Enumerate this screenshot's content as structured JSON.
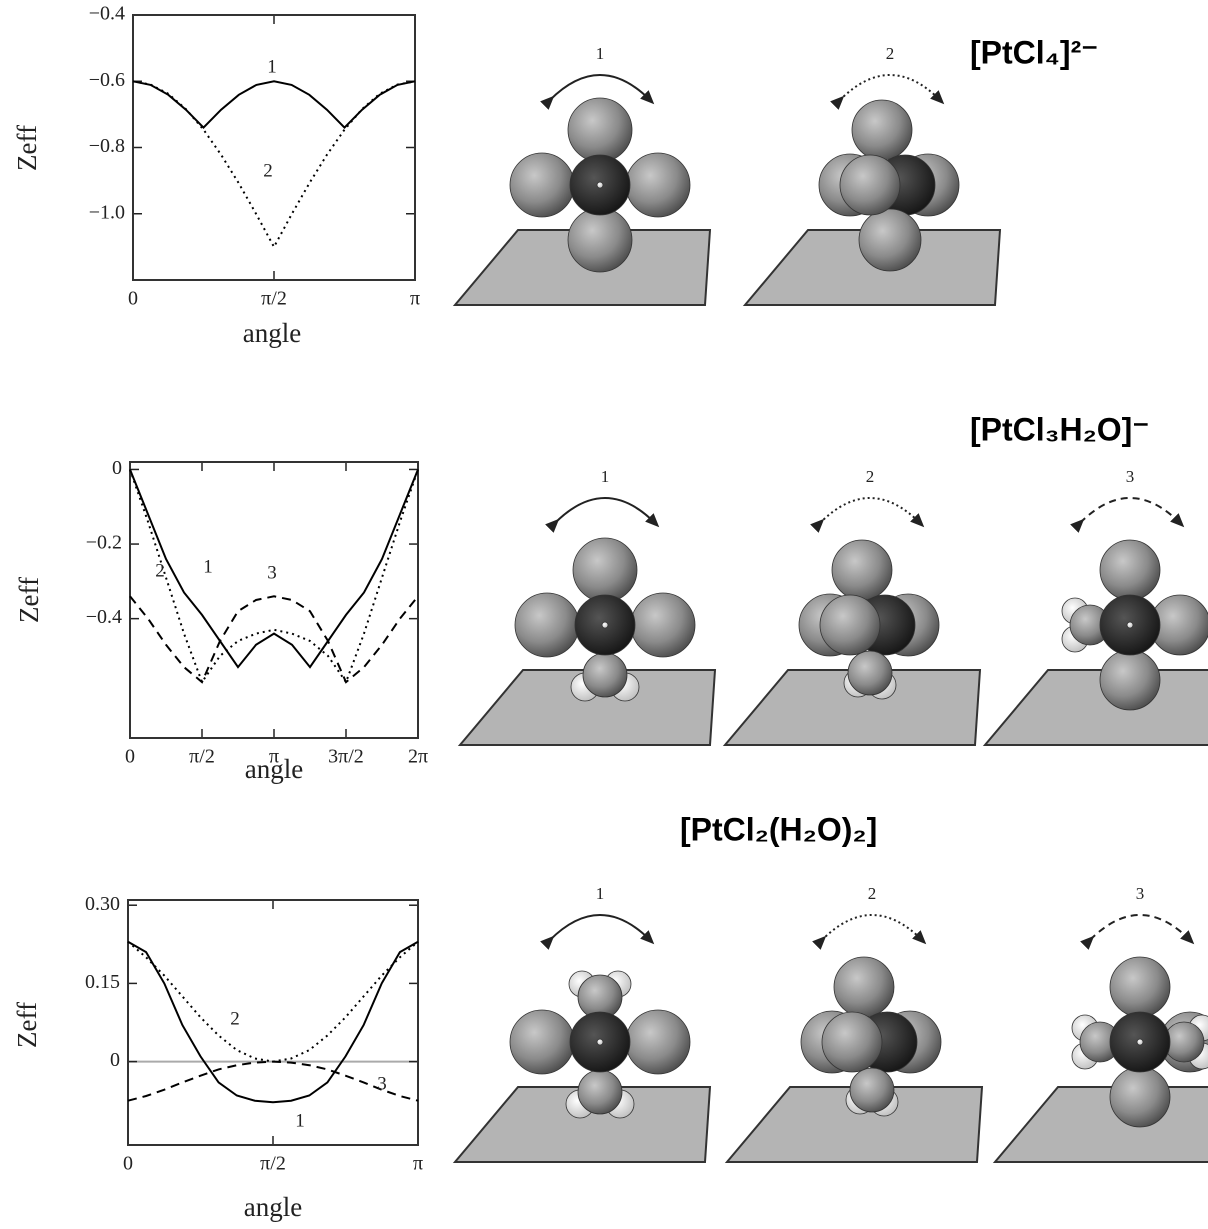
{
  "chart_data": [
    {
      "type": "line",
      "xlabel": "angle",
      "ylabel": "Zeff",
      "x": [
        0,
        0.19635,
        0.3927,
        0.58905,
        0.7854,
        0.98175,
        1.1781,
        1.37445,
        1.5708,
        1.76715,
        1.9635,
        2.15985,
        2.35619,
        2.55254,
        2.74889,
        2.94524,
        3.14159
      ],
      "xlim": [
        0,
        3.14159
      ],
      "xticks": [
        0,
        {
          "value": 1.5708,
          "label": "π/2"
        },
        {
          "value": 3.14159,
          "label": "π"
        }
      ],
      "ylim": [
        -1.2,
        -0.4
      ],
      "yticks": [
        {
          "value": -0.4,
          "label": "−0.4"
        },
        {
          "value": -0.6,
          "label": "−0.6"
        },
        {
          "value": -0.8,
          "label": "−0.8"
        },
        {
          "value": -1.0,
          "label": "−1.0"
        }
      ],
      "series": [
        {
          "name": "1",
          "color": "#000000",
          "style": "solid",
          "values": [
            -0.6,
            -0.611,
            -0.641,
            -0.686,
            -0.74,
            -0.686,
            -0.641,
            -0.611,
            -0.6,
            -0.611,
            -0.641,
            -0.686,
            -0.74,
            -0.686,
            -0.641,
            -0.611,
            -0.6
          ]
        },
        {
          "name": "2",
          "color": "#000000",
          "style": "dotted",
          "values": [
            -0.6,
            -0.61,
            -0.638,
            -0.684,
            -0.746,
            -0.822,
            -0.908,
            -1.002,
            -1.1,
            -1.002,
            -0.908,
            -0.822,
            -0.746,
            -0.684,
            -0.638,
            -0.61,
            -0.6
          ]
        }
      ]
    },
    {
      "type": "line",
      "xlabel": "angle",
      "ylabel": "Zeff",
      "x": [
        0,
        0.3927,
        0.7854,
        1.1781,
        1.5708,
        1.9635,
        2.35619,
        2.74889,
        3.14159,
        3.53429,
        3.92699,
        4.31969,
        4.71239,
        5.10509,
        5.49779,
        5.89049,
        6.28319
      ],
      "xlim": [
        0,
        6.28319
      ],
      "xticks": [
        0,
        {
          "value": 1.5708,
          "label": "π/2"
        },
        {
          "value": 3.14159,
          "label": "π"
        },
        {
          "value": 4.71239,
          "label": "3π/2"
        },
        {
          "value": 6.28319,
          "label": "2π"
        }
      ],
      "ylim": [
        -0.72,
        0.02
      ],
      "yticks": [
        0,
        {
          "value": -0.2,
          "label": "−0.2"
        },
        {
          "value": -0.4,
          "label": "−0.4"
        }
      ],
      "series": [
        {
          "name": "1",
          "color": "#000000",
          "style": "solid",
          "values": [
            0,
            -0.12,
            -0.24,
            -0.33,
            -0.39,
            -0.46,
            -0.53,
            -0.47,
            -0.44,
            -0.47,
            -0.53,
            -0.46,
            -0.39,
            -0.33,
            -0.24,
            -0.12,
            0
          ]
        },
        {
          "name": "2",
          "color": "#000000",
          "style": "dotted",
          "values": [
            0,
            -0.14,
            -0.29,
            -0.44,
            -0.57,
            -0.5,
            -0.46,
            -0.44,
            -0.43,
            -0.44,
            -0.46,
            -0.5,
            -0.57,
            -0.44,
            -0.29,
            -0.14,
            0
          ]
        },
        {
          "name": "3",
          "color": "#000000",
          "style": "dashed",
          "values": [
            -0.34,
            -0.4,
            -0.47,
            -0.53,
            -0.57,
            -0.46,
            -0.38,
            -0.35,
            -0.34,
            -0.35,
            -0.38,
            -0.46,
            -0.57,
            -0.53,
            -0.47,
            -0.4,
            -0.34
          ]
        }
      ]
    },
    {
      "type": "line",
      "xlabel": "angle",
      "ylabel": "Zeff",
      "x": [
        0,
        0.19635,
        0.3927,
        0.58905,
        0.7854,
        0.98175,
        1.1781,
        1.37445,
        1.5708,
        1.76715,
        1.9635,
        2.15985,
        2.35619,
        2.55254,
        2.74889,
        2.94524,
        3.14159
      ],
      "xlim": [
        0,
        3.14159
      ],
      "xticks": [
        0,
        {
          "value": 1.5708,
          "label": "π/2"
        },
        {
          "value": 3.14159,
          "label": "π"
        }
      ],
      "ylim": [
        -0.16,
        0.31
      ],
      "yticks": [
        {
          "value": 0.3,
          "label": "0.30"
        },
        {
          "value": 0.15,
          "label": "0.15"
        },
        0
      ],
      "zero_line": true,
      "series": [
        {
          "name": "1",
          "color": "#000000",
          "style": "solid",
          "values": [
            0.23,
            0.21,
            0.15,
            0.07,
            0.01,
            -0.04,
            -0.065,
            -0.075,
            -0.078,
            -0.075,
            -0.065,
            -0.04,
            0.01,
            0.07,
            0.15,
            0.21,
            0.23
          ]
        },
        {
          "name": "2",
          "color": "#000000",
          "style": "dotted",
          "values": [
            0.23,
            0.2,
            0.165,
            0.125,
            0.085,
            0.05,
            0.022,
            0.006,
            0,
            0.006,
            0.022,
            0.05,
            0.085,
            0.125,
            0.165,
            0.2,
            0.23
          ]
        },
        {
          "name": "3",
          "color": "#000000",
          "style": "dashed",
          "values": [
            -0.075,
            -0.066,
            -0.054,
            -0.04,
            -0.027,
            -0.015,
            -0.007,
            -0.002,
            0,
            -0.002,
            -0.007,
            -0.015,
            -0.027,
            -0.04,
            -0.054,
            -0.066,
            -0.075
          ]
        }
      ]
    }
  ],
  "panels": [
    {
      "formula": "[PtCl₄]²⁻",
      "rotations": [
        "1",
        "2"
      ]
    },
    {
      "formula": "[PtCl₃H₂O]⁻",
      "rotations": [
        "1",
        "2",
        "3"
      ]
    },
    {
      "formula": "[PtCl₂(H₂O)₂]",
      "rotations": [
        "1",
        "2",
        "3"
      ]
    }
  ]
}
